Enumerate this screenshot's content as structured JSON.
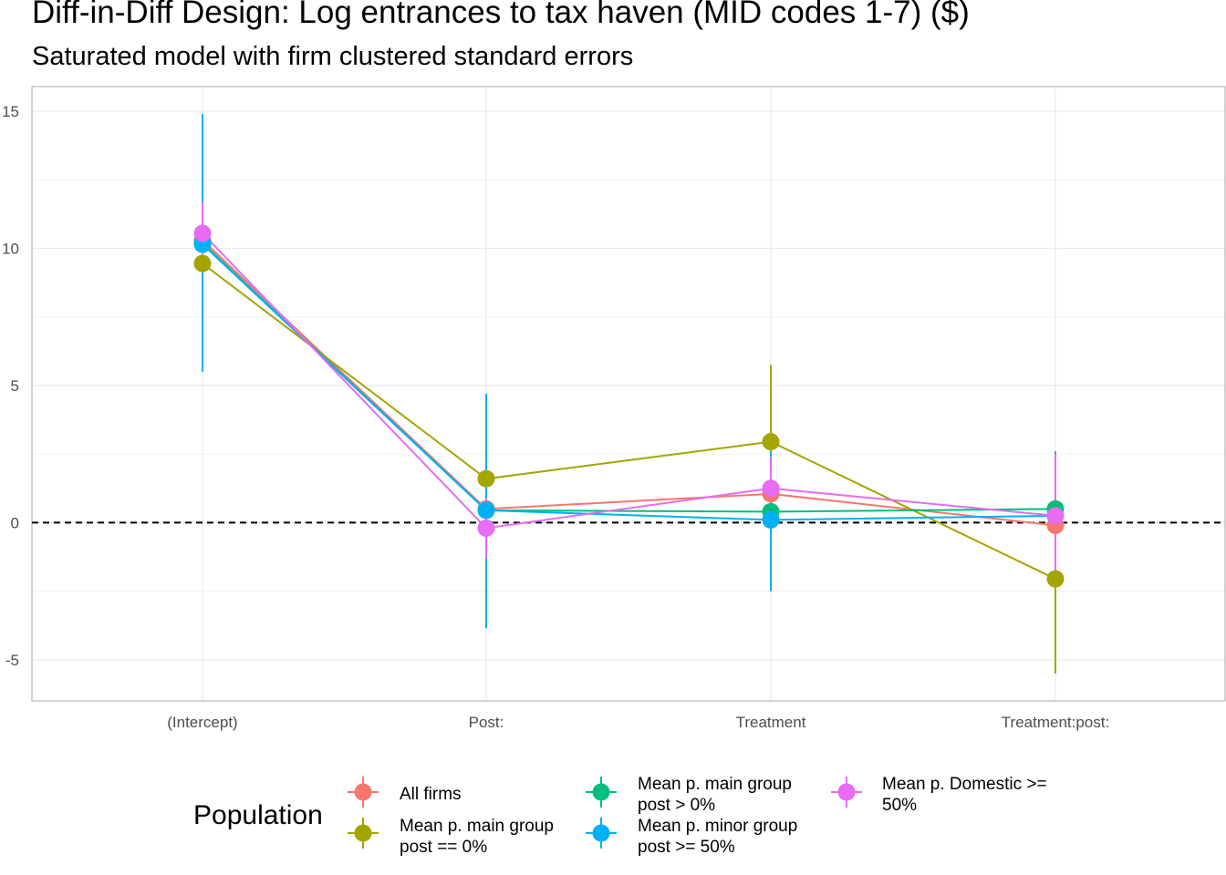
{
  "chart_data": {
    "type": "line",
    "title": "Diff-in-Diff Design: Log entrances to tax haven (MID codes 1-7)  ($)",
    "subtitle": "Saturated model with firm clustered standard errors",
    "xlabel": "",
    "ylabel": "",
    "categories": [
      "(Intercept)",
      "Post:",
      "Treatment",
      "Treatment:post:"
    ],
    "yticks": [
      "15",
      "10",
      "5",
      "0",
      "-5"
    ],
    "ytick_values": [
      15,
      10,
      5,
      0,
      -5
    ],
    "ylim": [
      -6.5,
      15.9
    ],
    "reference_line": 0,
    "grid": true,
    "legend": {
      "title": "Population",
      "position": "bottom"
    },
    "series": [
      {
        "name": "All firms",
        "color": "#F8766D",
        "values": [
          10.3,
          0.5,
          1.05,
          -0.1
        ],
        "ci_low": [
          8.5,
          -0.6,
          0.3,
          -1.1
        ],
        "ci_high": [
          12.0,
          1.5,
          1.8,
          1.0
        ]
      },
      {
        "name": "Mean p. main group post == 0%",
        "color": "#A3A500",
        "values": [
          9.45,
          1.6,
          2.95,
          -2.05
        ],
        "ci_low": [
          8.7,
          0.9,
          0.2,
          -5.5
        ],
        "ci_high": [
          10.2,
          2.3,
          5.75,
          1.4
        ]
      },
      {
        "name": "Mean p. main group post > 0%",
        "color": "#00BF7D",
        "values": [
          10.2,
          0.45,
          0.4,
          0.5
        ],
        "ci_low": [
          9.0,
          -0.3,
          -0.4,
          -1.6
        ],
        "ci_high": [
          11.4,
          1.2,
          1.3,
          2.6
        ]
      },
      {
        "name": "Mean p. minor group post >= 50%",
        "color": "#00B0F6",
        "values": [
          10.15,
          0.45,
          0.1,
          0.25
        ],
        "ci_low": [
          5.5,
          -3.85,
          -2.5,
          -1.5
        ],
        "ci_high": [
          14.9,
          4.7,
          2.6,
          2.0
        ]
      },
      {
        "name": "Mean p. Domestic >= 50%",
        "color": "#E76BF3",
        "values": [
          10.55,
          -0.2,
          1.25,
          0.25
        ],
        "ci_low": [
          9.4,
          -1.3,
          0.2,
          -2.0
        ],
        "ci_high": [
          11.7,
          0.9,
          2.4,
          2.5
        ]
      }
    ]
  },
  "legend_lines": {
    "s0": [
      "All firms"
    ],
    "s1": [
      "Mean p. main group",
      "post == 0%"
    ],
    "s2": [
      "Mean p. main group",
      "post > 0%"
    ],
    "s3": [
      "Mean p. minor group",
      "post >= 50%"
    ],
    "s4": [
      "Mean p. Domestic >=",
      "50%"
    ]
  }
}
